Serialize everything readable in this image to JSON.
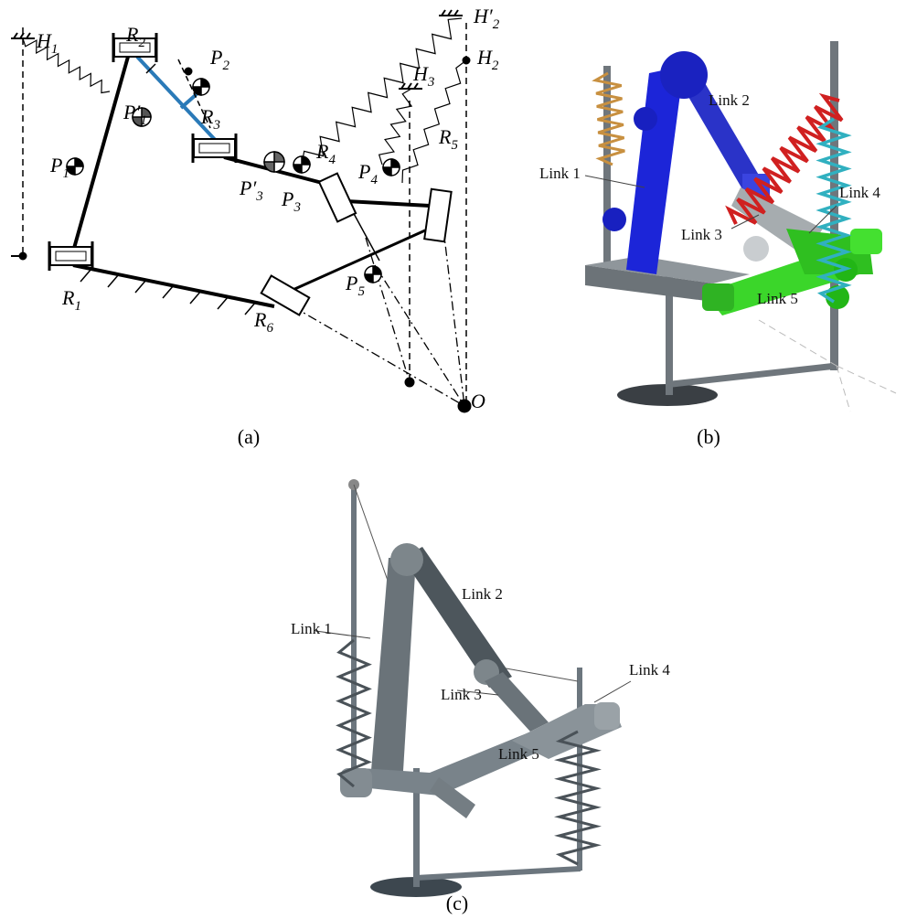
{
  "panels": [
    {
      "caption": "(a)",
      "labels": [
        {
          "letter": "H",
          "sub": "1"
        },
        {
          "letter": "R",
          "sub": "2"
        },
        {
          "letter": "P",
          "sub": "2"
        },
        {
          "letter": "P′",
          "sub": "1"
        },
        {
          "letter": "R",
          "sub": "3"
        },
        {
          "letter": "P",
          "sub": "1"
        },
        {
          "letter": "P′",
          "sub": "3"
        },
        {
          "letter": "P",
          "sub": "3"
        },
        {
          "letter": "R",
          "sub": "4"
        },
        {
          "letter": "P",
          "sub": "4"
        },
        {
          "letter": "H",
          "sub": "3"
        },
        {
          "letter": "H′",
          "sub": "2"
        },
        {
          "letter": "H",
          "sub": "2"
        },
        {
          "letter": "R",
          "sub": "5"
        },
        {
          "letter": "P",
          "sub": "5"
        },
        {
          "letter": "R",
          "sub": "1"
        },
        {
          "letter": "R",
          "sub": "6"
        },
        {
          "letter": "O",
          "sub": ""
        }
      ]
    },
    {
      "caption": "(b)",
      "labels": [
        "Link 2",
        "Link 1",
        "Link 4",
        "Link 3",
        "Link 5"
      ]
    },
    {
      "caption": "(c)",
      "labels": [
        "Link 2",
        "Link 1",
        "Link 4",
        "Link 3",
        "Link 5"
      ]
    }
  ]
}
